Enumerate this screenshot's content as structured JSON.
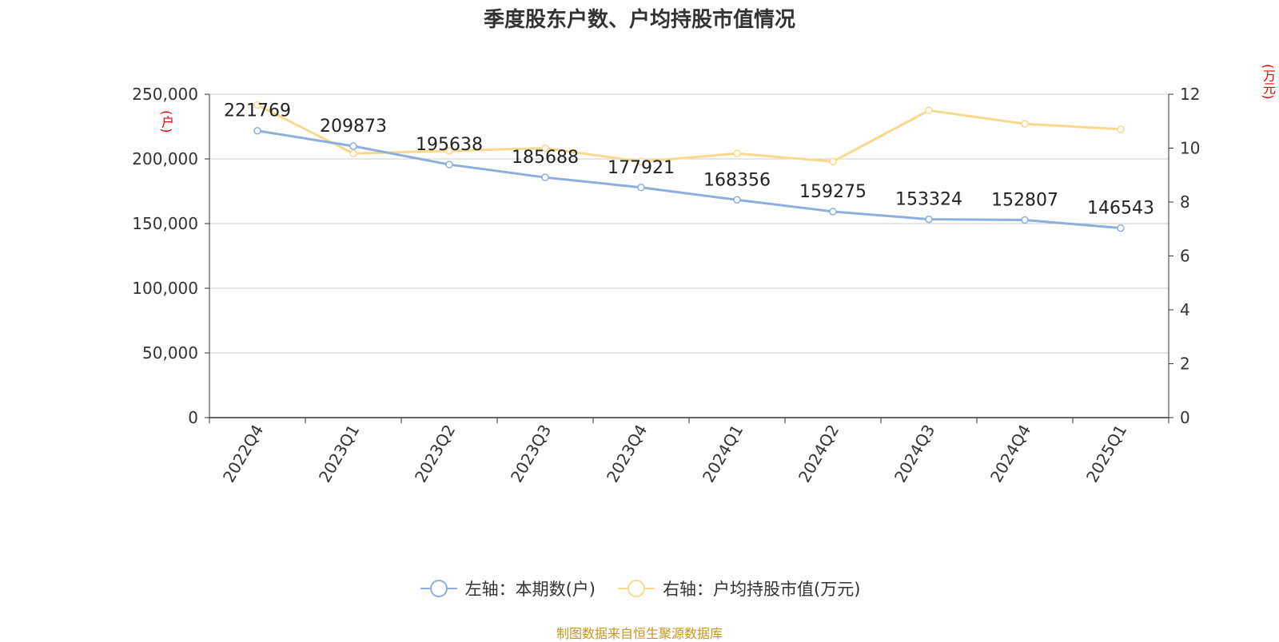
{
  "title": "季度股东户数、户均持股市值情况",
  "source": "制图数据来自恒生聚源数据库",
  "colors": {
    "left_series": "#8eaedd",
    "right_series": "#fbd98c",
    "unit": "#ee0000",
    "source": "#c8961e"
  },
  "chart_data": {
    "type": "line",
    "title": "季度股东户数、户均持股市值情况",
    "categories": [
      "2022Q4",
      "2023Q1",
      "2023Q2",
      "2023Q3",
      "2023Q4",
      "2024Q1",
      "2024Q2",
      "2024Q3",
      "2024Q4",
      "2025Q1"
    ],
    "left_axis": {
      "unit": "(户)",
      "ylim": [
        0,
        250000
      ],
      "ticks": [
        "0",
        "50,000",
        "100,000",
        "150,000",
        "200,000",
        "250,000"
      ]
    },
    "right_axis": {
      "unit": "(万元)",
      "ylim": [
        0,
        12
      ],
      "ticks": [
        "0",
        "2",
        "4",
        "6",
        "8",
        "10",
        "12"
      ]
    },
    "grid": true,
    "legend_position": "bottom",
    "series": [
      {
        "name": "左轴：本期数(户)",
        "axis": "left",
        "values": [
          221769,
          209873,
          195638,
          185688,
          177921,
          168356,
          159275,
          153324,
          152807,
          146543
        ],
        "labels": [
          "221769",
          "209873",
          "195638",
          "185688",
          "177921",
          "168356",
          "159275",
          "153324",
          "152807",
          "146543"
        ]
      },
      {
        "name": "右轴：户均持股市值(万元)",
        "axis": "right",
        "values": [
          11.6,
          9.8,
          9.9,
          10.0,
          9.5,
          9.8,
          9.5,
          11.4,
          10.9,
          10.7
        ]
      }
    ]
  }
}
